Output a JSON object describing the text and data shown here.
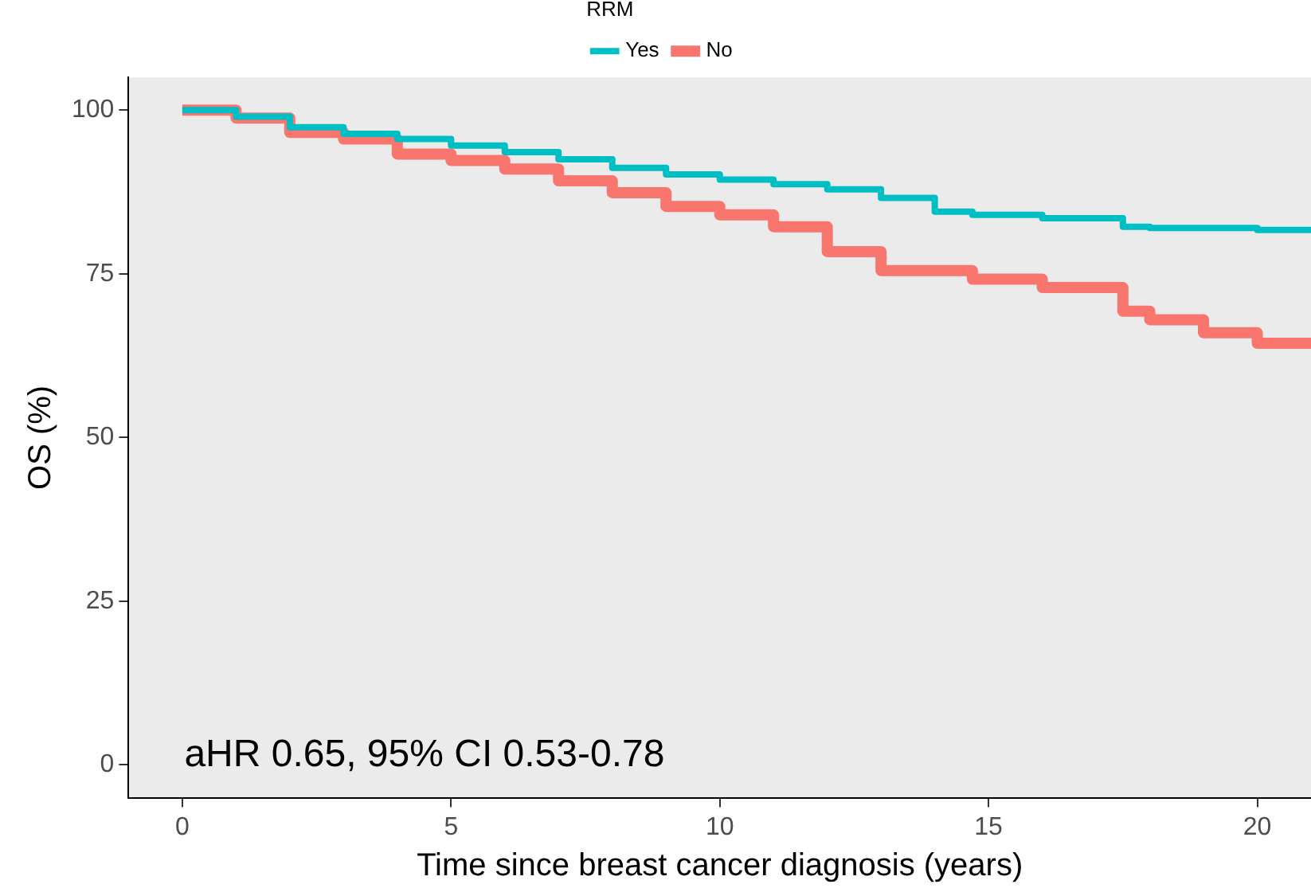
{
  "chart_data": {
    "type": "step",
    "xlabel": "Time since breast cancer diagnosis (years)",
    "ylabel": "OS (%)",
    "legend_title": "RRM",
    "legend": "top",
    "x": [
      0,
      1,
      2,
      3,
      4,
      5,
      6,
      7,
      8,
      9,
      10,
      11,
      12,
      13,
      14,
      14.7,
      16,
      17.5,
      18,
      19,
      20,
      21
    ],
    "series": [
      {
        "name": "No",
        "color": "#f8766d",
        "values": [
          100,
          100,
          98.8,
          96.6,
          95.6,
          93.3,
          92.3,
          91,
          89.2,
          87.4,
          85.3,
          84,
          82.2,
          78.4,
          75.5,
          75.5,
          74.2,
          72.9,
          69.3,
          68,
          66,
          64.4
        ]
      },
      {
        "name": "Yes",
        "color": "#00bfc4",
        "values": [
          100,
          100,
          99,
          97.4,
          96.4,
          95.6,
          94.6,
          93.6,
          92.5,
          91.2,
          90.2,
          89.4,
          88.7,
          87.9,
          86.6,
          84.5,
          84,
          83.5,
          82.2,
          82,
          82,
          81.7
        ]
      }
    ],
    "xlim": [
      -1,
      21
    ],
    "xticks": [
      0,
      5,
      10,
      15,
      20
    ],
    "ylim": [
      -5,
      105
    ],
    "yticks": [
      0,
      25,
      50,
      75,
      100
    ],
    "grid": false,
    "marker": "none",
    "line_style": "solid",
    "annotations": [
      "aHR 0.65, 95% CI 0.53-0.78"
    ]
  }
}
